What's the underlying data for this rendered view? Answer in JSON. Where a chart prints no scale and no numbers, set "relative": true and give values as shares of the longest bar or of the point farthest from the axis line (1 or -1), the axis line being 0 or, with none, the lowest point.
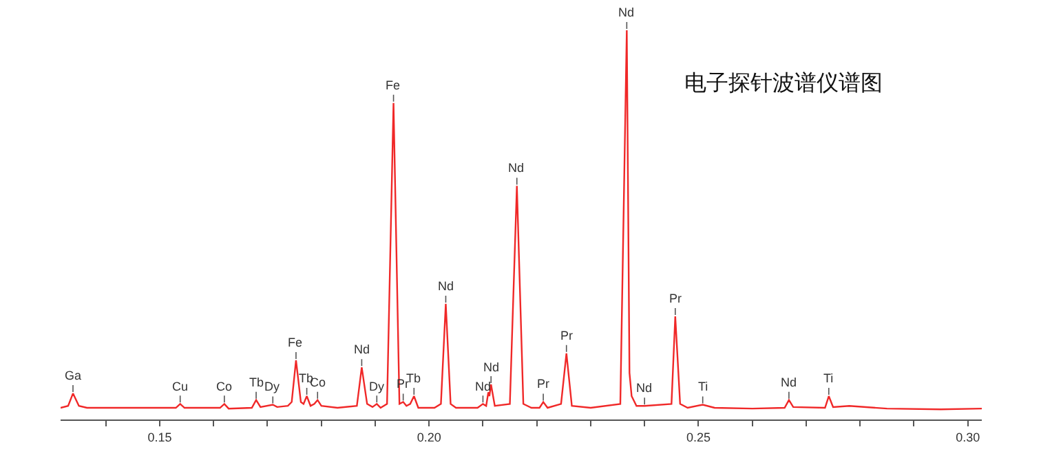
{
  "chart_data": {
    "type": "line",
    "title": "电子探针波谱仪谱图",
    "relative": true,
    "color": "#f02828",
    "marker": "none",
    "line_style": "solid",
    "grid": false,
    "tick_labels": "x",
    "xlim": [
      0.1316,
      0.3026
    ],
    "xticks": [
      {
        "value": 0.14,
        "label": null
      },
      {
        "value": 0.15,
        "label": "0.15"
      },
      {
        "value": 0.16,
        "label": null
      },
      {
        "value": 0.17,
        "label": null
      },
      {
        "value": 0.18,
        "label": null
      },
      {
        "value": 0.19,
        "label": null
      },
      {
        "value": 0.2,
        "label": "0.20"
      },
      {
        "value": 0.21,
        "label": null
      },
      {
        "value": 0.22,
        "label": null
      },
      {
        "value": 0.23,
        "label": null
      },
      {
        "value": 0.24,
        "label": null
      },
      {
        "value": 0.25,
        "label": "0.25"
      },
      {
        "value": 0.26,
        "label": null
      },
      {
        "value": 0.27,
        "label": null
      },
      {
        "value": 0.28,
        "label": null
      },
      {
        "value": 0.29,
        "label": null
      },
      {
        "value": 0.3,
        "label": "0.30"
      }
    ],
    "x": [
      0.1316,
      0.133,
      0.1339,
      0.135,
      0.1365,
      0.145,
      0.153,
      0.1538,
      0.1546,
      0.1612,
      0.162,
      0.1628,
      0.1671,
      0.1679,
      0.1687,
      0.171,
      0.1718,
      0.1738,
      0.1745,
      0.1753,
      0.1762,
      0.1767,
      0.1773,
      0.178,
      0.1787,
      0.1793,
      0.18,
      0.183,
      0.1866,
      0.1875,
      0.1885,
      0.1895,
      0.1903,
      0.191,
      0.1922,
      0.1934,
      0.1945,
      0.1952,
      0.1958,
      0.1965,
      0.1972,
      0.198,
      0.201,
      0.2022,
      0.2031,
      0.204,
      0.205,
      0.209,
      0.21,
      0.2106,
      0.211,
      0.2112,
      0.2115,
      0.2122,
      0.215,
      0.2163,
      0.2175,
      0.219,
      0.2205,
      0.2212,
      0.222,
      0.2245,
      0.2255,
      0.2265,
      0.23,
      0.2355,
      0.2367,
      0.2372,
      0.2376,
      0.2385,
      0.24,
      0.245,
      0.2457,
      0.2466,
      0.248,
      0.2508,
      0.253,
      0.26,
      0.266,
      0.2668,
      0.2676,
      0.2735,
      0.2742,
      0.275,
      0.278,
      0.285,
      0.295,
      0.3026
    ],
    "values": [
      0.03,
      0.035,
      0.067,
      0.035,
      0.03,
      0.03,
      0.03,
      0.04,
      0.03,
      0.03,
      0.04,
      0.028,
      0.03,
      0.05,
      0.032,
      0.038,
      0.032,
      0.035,
      0.045,
      0.152,
      0.045,
      0.04,
      0.06,
      0.035,
      0.04,
      0.05,
      0.035,
      0.03,
      0.035,
      0.134,
      0.04,
      0.032,
      0.04,
      0.03,
      0.04,
      0.813,
      0.04,
      0.045,
      0.035,
      0.04,
      0.06,
      0.03,
      0.03,
      0.04,
      0.297,
      0.04,
      0.03,
      0.03,
      0.04,
      0.035,
      0.07,
      0.06,
      0.09,
      0.035,
      0.04,
      0.6,
      0.04,
      0.03,
      0.03,
      0.045,
      0.03,
      0.04,
      0.17,
      0.035,
      0.03,
      0.04,
      1.0,
      0.12,
      0.06,
      0.035,
      0.035,
      0.04,
      0.265,
      0.04,
      0.03,
      0.038,
      0.03,
      0.028,
      0.03,
      0.05,
      0.032,
      0.03,
      0.06,
      0.032,
      0.035,
      0.028,
      0.026,
      0.028
    ],
    "annotations": [
      {
        "text": "Ga",
        "x": 0.1339,
        "y": 0.067
      },
      {
        "text": "Cu",
        "x": 0.1538,
        "y": 0.04
      },
      {
        "text": "Co",
        "x": 0.162,
        "y": 0.04
      },
      {
        "text": "Tb",
        "x": 0.1679,
        "y": 0.05
      },
      {
        "text": "Dy",
        "x": 0.171,
        "y": 0.038
      },
      {
        "text": "Fe",
        "x": 0.1753,
        "y": 0.152
      },
      {
        "text": "Tb",
        "x": 0.1773,
        "y": 0.06
      },
      {
        "text": "Co",
        "x": 0.1793,
        "y": 0.05
      },
      {
        "text": "Nd",
        "x": 0.1875,
        "y": 0.134
      },
      {
        "text": "Dy",
        "x": 0.1903,
        "y": 0.04
      },
      {
        "text": "Fe",
        "x": 0.1934,
        "y": 0.813
      },
      {
        "text": "Pr",
        "x": 0.1952,
        "y": 0.045
      },
      {
        "text": "Tb",
        "x": 0.1972,
        "y": 0.06
      },
      {
        "text": "Nd",
        "x": 0.2031,
        "y": 0.297
      },
      {
        "text": "Nd",
        "x": 0.21,
        "y": 0.04
      },
      {
        "text": "Nd",
        "x": 0.2115,
        "y": 0.09
      },
      {
        "text": "Nd",
        "x": 0.2163,
        "y": 0.6
      },
      {
        "text": "Pr",
        "x": 0.2212,
        "y": 0.045
      },
      {
        "text": "Pr",
        "x": 0.2255,
        "y": 0.17
      },
      {
        "text": "Nd",
        "x": 0.2367,
        "y": 1.0
      },
      {
        "text": "Nd",
        "x": 0.24,
        "y": 0.035
      },
      {
        "text": "Pr",
        "x": 0.2457,
        "y": 0.265
      },
      {
        "text": "Ti",
        "x": 0.2508,
        "y": 0.038
      },
      {
        "text": "Nd",
        "x": 0.2668,
        "y": 0.05
      },
      {
        "text": "Ti",
        "x": 0.2742,
        "y": 0.06
      }
    ]
  }
}
